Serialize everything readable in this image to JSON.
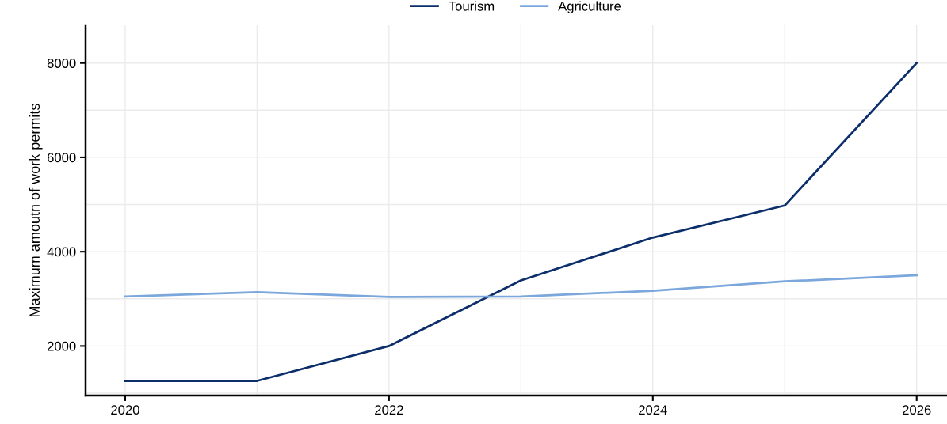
{
  "chart_data": {
    "type": "line",
    "ylabel": "Maximum amoutn of work permits",
    "x": [
      2020,
      2021,
      2022,
      2023,
      2024,
      2025,
      2026
    ],
    "series": [
      {
        "name": "Tourism",
        "color": "#0c2f6b",
        "values": [
          1260,
          1260,
          2000,
          3390,
          4300,
          4980,
          8000
        ]
      },
      {
        "name": "Agriculture",
        "color": "#7ba7dc",
        "values": [
          3050,
          3140,
          3040,
          3050,
          3170,
          3370,
          3500
        ]
      }
    ],
    "xlim": [
      2019.7,
      2026.23
    ],
    "ylim": [
      950,
      8800
    ],
    "xticks": [
      2020,
      {
        "value": 2021,
        "label": null
      },
      2022,
      {
        "value": 2023,
        "label": null
      },
      2024,
      {
        "value": 2025,
        "label": null
      },
      2026
    ],
    "yticks": [
      {
        "value": 1000,
        "label": null
      },
      2000,
      {
        "value": 3000,
        "label": null
      },
      4000,
      {
        "value": 5000,
        "label": null
      },
      6000,
      {
        "value": 7000,
        "label": null
      },
      8000
    ],
    "grid": true,
    "legend": "top",
    "marker": "none",
    "line_style": "solid"
  }
}
